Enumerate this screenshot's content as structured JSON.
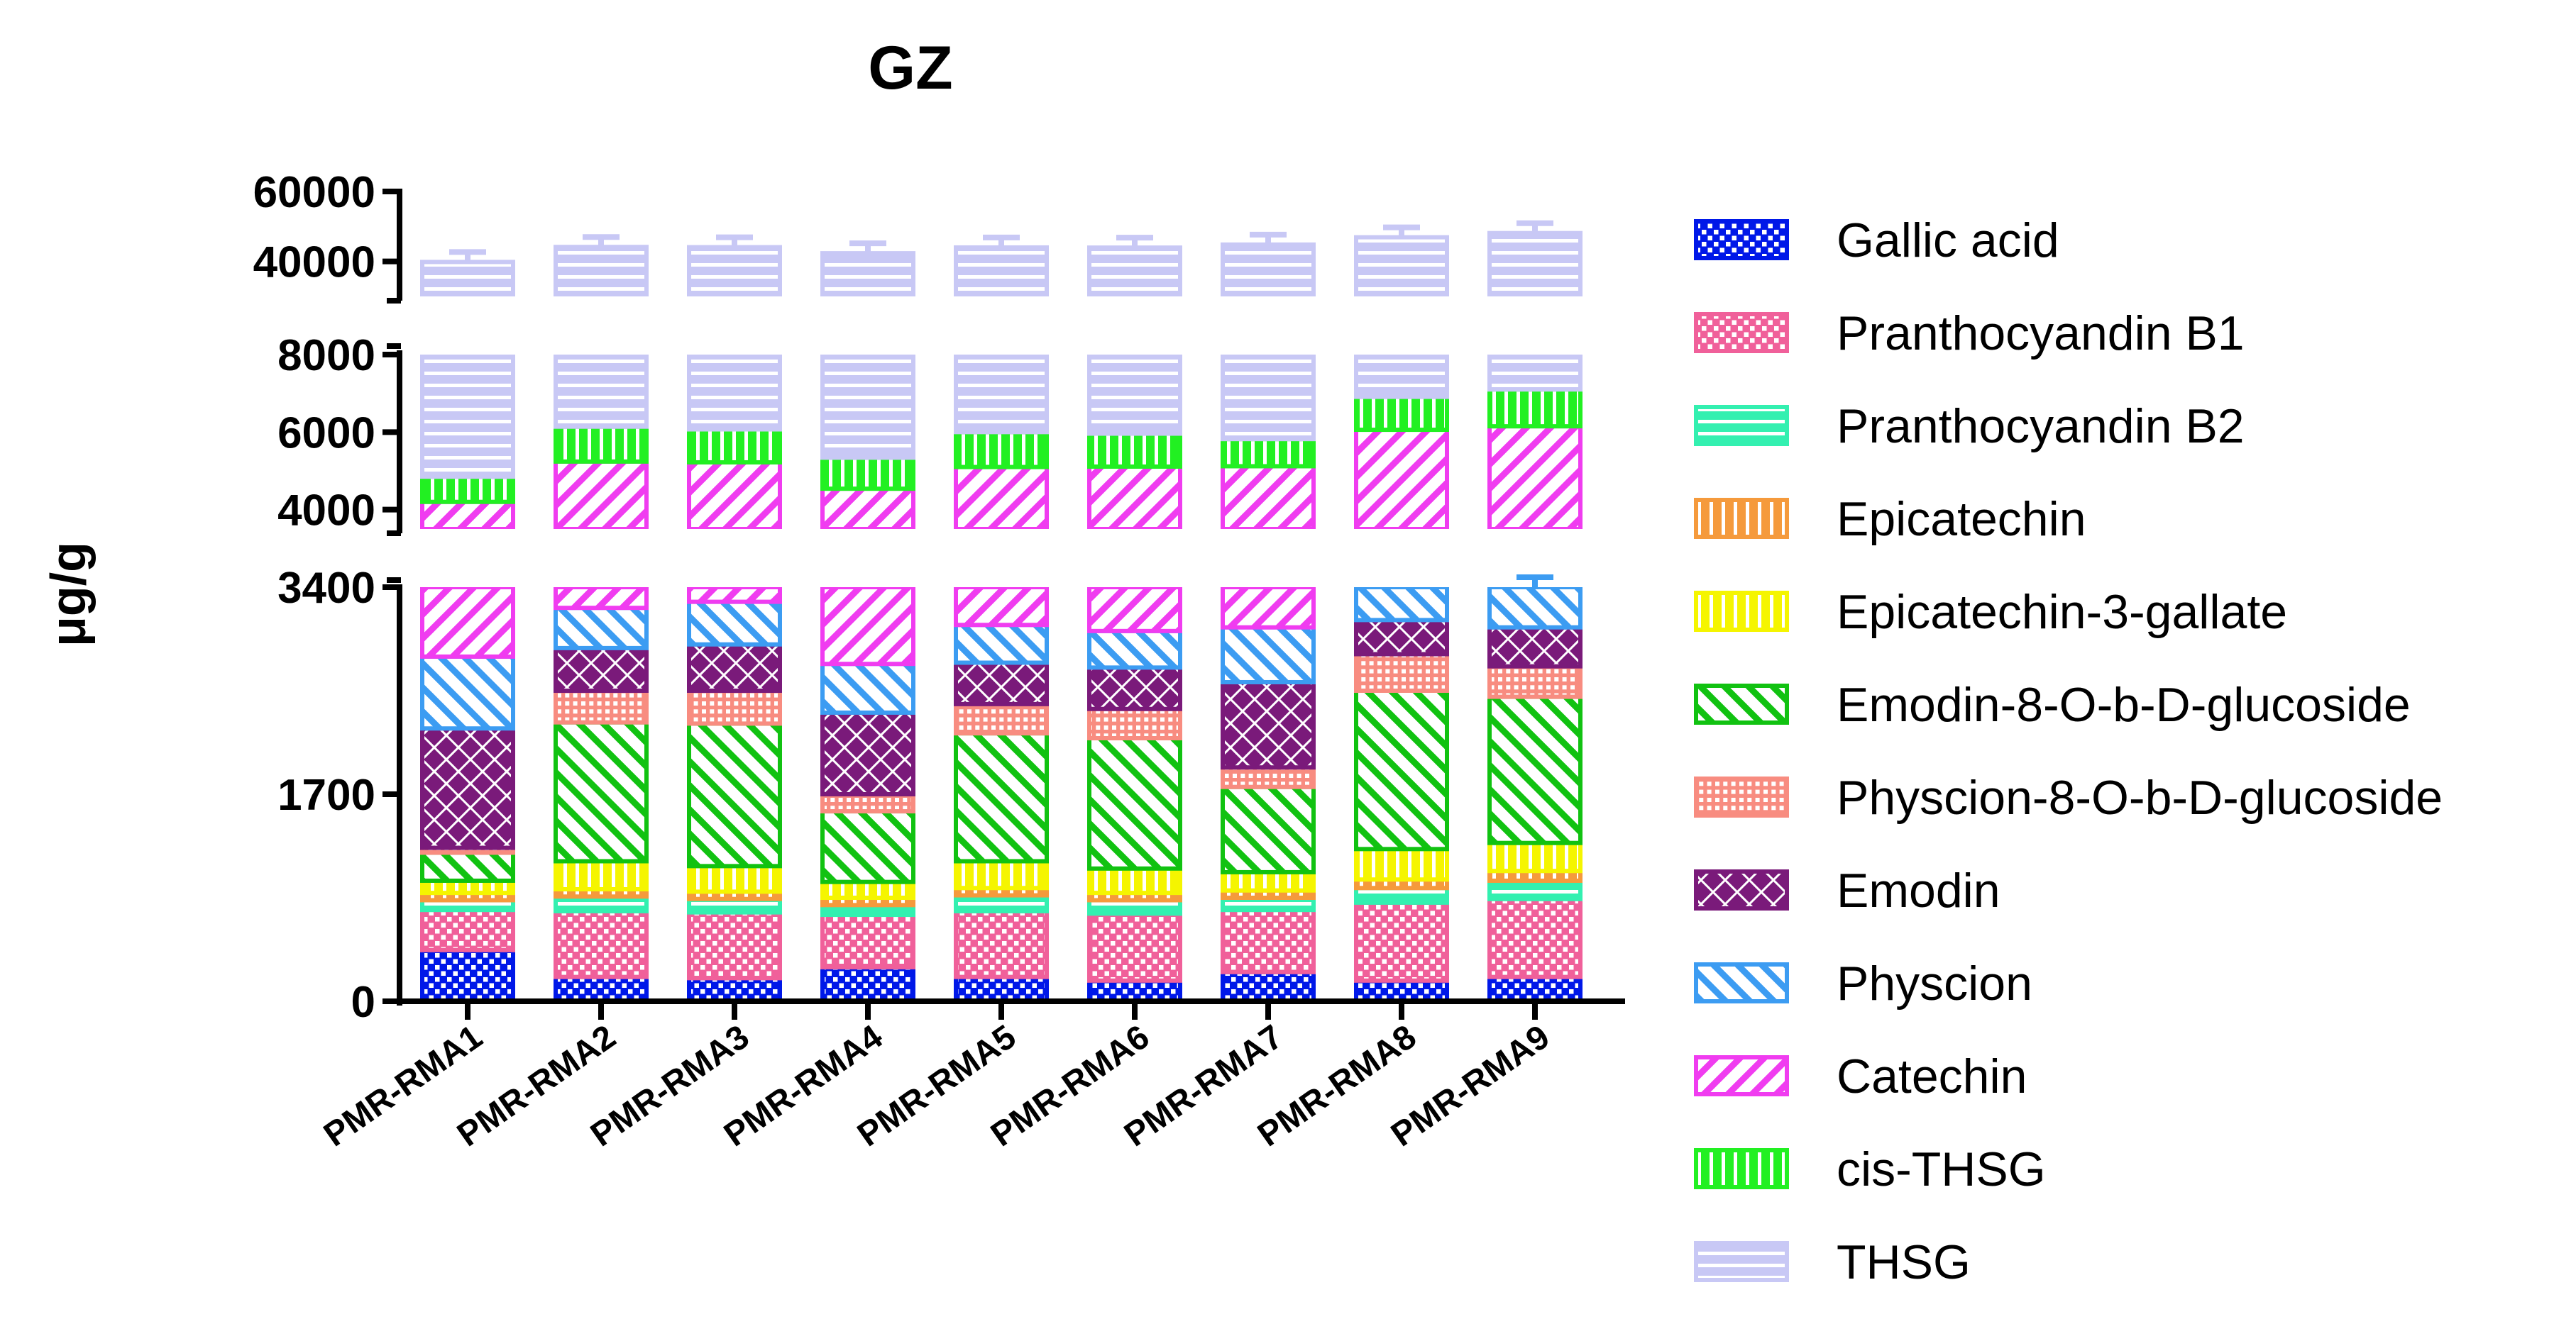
{
  "chart_data": {
    "type": "bar",
    "stacked": true,
    "broken_axis": true,
    "title": "GZ",
    "xlabel": "",
    "ylabel": "μg/g",
    "categories": [
      "PMR-RMA1",
      "PMR-RMA2",
      "PMR-RMA3",
      "PMR-RMA4",
      "PMR-RMA5",
      "PMR-RMA6",
      "PMR-RMA7",
      "PMR-RMA8",
      "PMR-RMA9"
    ],
    "y_segments": [
      {
        "range": [
          0,
          3400
        ],
        "ticks": [
          0,
          1700,
          3400
        ],
        "tick_labels": [
          "0",
          "1700",
          "3400"
        ]
      },
      {
        "range": [
          3500,
          8000
        ],
        "ticks": [
          4000,
          6000,
          8000
        ],
        "tick_labels": [
          "4000",
          "6000",
          "8000"
        ]
      },
      {
        "range": [
          30000,
          60000
        ],
        "ticks": [
          40000,
          60000
        ],
        "tick_labels": [
          "40000",
          "60000"
        ]
      }
    ],
    "series": [
      {
        "name": "Gallic acid",
        "color": "#0018E8",
        "pattern": "checker",
        "values": [
          420,
          200,
          190,
          280,
          200,
          170,
          240,
          170,
          200
        ]
      },
      {
        "name": "Pranthocyandin B1",
        "color": "#F0609A",
        "pattern": "checker",
        "values": [
          330,
          540,
          540,
          430,
          540,
          550,
          510,
          640,
          640
        ]
      },
      {
        "name": "Pranthocyandin B2",
        "color": "#33F0B0",
        "pattern": "hlines",
        "values": [
          80,
          120,
          110,
          80,
          130,
          110,
          100,
          120,
          150
        ]
      },
      {
        "name": "Epicatechin",
        "color": "#F59A3C",
        "pattern": "vlines",
        "values": [
          60,
          60,
          60,
          60,
          60,
          60,
          60,
          70,
          80
        ]
      },
      {
        "name": "Epicatechin-3-gallate",
        "color": "#F5F500",
        "pattern": "vlines",
        "values": [
          100,
          230,
          210,
          130,
          220,
          200,
          150,
          250,
          230
        ]
      },
      {
        "name": "Emodin-8-O-b-D-glucoside",
        "color": "#11C211",
        "pattern": "diag-back",
        "values": [
          230,
          1140,
          1170,
          580,
          1050,
          1070,
          700,
          1300,
          1200
        ]
      },
      {
        "name": "Physcion-8-O-b-D-glucoside",
        "color": "#F88C80",
        "pattern": "grid",
        "values": [
          40,
          260,
          270,
          140,
          240,
          240,
          160,
          300,
          250
        ]
      },
      {
        "name": "Emodin",
        "color": "#7A1A7A",
        "pattern": "crosshatch",
        "values": [
          980,
          350,
          380,
          670,
          340,
          340,
          700,
          280,
          320
        ]
      },
      {
        "name": "Physcion",
        "color": "#3C9CF2",
        "pattern": "diag-back",
        "values": [
          590,
          330,
          350,
          400,
          310,
          300,
          450,
          340,
          330
        ]
      },
      {
        "name": "Catechin",
        "color": "#F03CF0",
        "pattern": "diag-fwd",
        "values": [
          1370,
          2010,
          1940,
          1770,
          2010,
          2070,
          2050,
          2590,
          2750
        ]
      },
      {
        "name": "cis-THSG",
        "color": "#22F022",
        "pattern": "vlines",
        "values": [
          650,
          900,
          850,
          800,
          900,
          850,
          700,
          850,
          950
        ]
      },
      {
        "name": "THSG",
        "color": "#C8C8F5",
        "pattern": "hlines",
        "values": [
          35000,
          38000,
          38000,
          37000,
          38000,
          38000,
          39000,
          40000,
          41000
        ]
      }
    ],
    "legend_position": "right",
    "grid": false
  }
}
